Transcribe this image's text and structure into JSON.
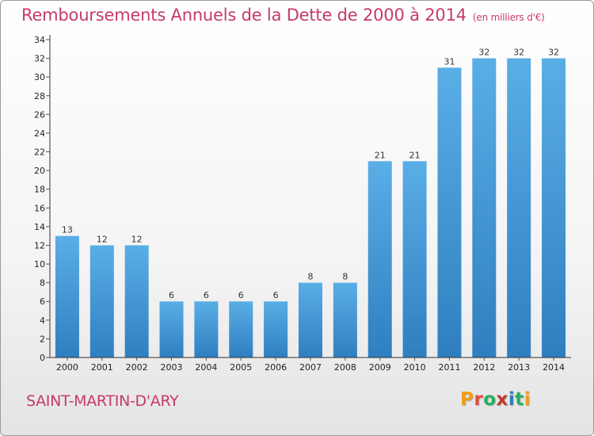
{
  "title": "Remboursements Annuels de la Dette de 2000 à 2014",
  "subtitle": "(en milliers d'€)",
  "commune": "SAINT-MARTIN-D'ARY",
  "brand": {
    "text": "Proxiti",
    "letter_colors": [
      "#f39c12",
      "#e74c3c",
      "#27ae60",
      "#c0392b",
      "#2980b9",
      "#27ae60",
      "#f39c12"
    ]
  },
  "colors": {
    "title": "#c63a6a",
    "bar_top": "#5aaee6",
    "bar_bottom": "#2f7fc0",
    "axis": "#333333",
    "grid_tick": "#555555"
  },
  "chart_data": {
    "type": "bar",
    "categories": [
      "2000",
      "2001",
      "2002",
      "2003",
      "2004",
      "2005",
      "2006",
      "2007",
      "2008",
      "2009",
      "2010",
      "2011",
      "2012",
      "2013",
      "2014"
    ],
    "values": [
      13,
      12,
      12,
      6,
      6,
      6,
      6,
      8,
      8,
      21,
      21,
      31,
      32,
      32,
      32
    ],
    "ylim": [
      0,
      34
    ],
    "ytick_step": 2,
    "grid": false,
    "title": "Remboursements Annuels de la Dette de 2000 à 2014",
    "xlabel": "",
    "ylabel": ""
  }
}
